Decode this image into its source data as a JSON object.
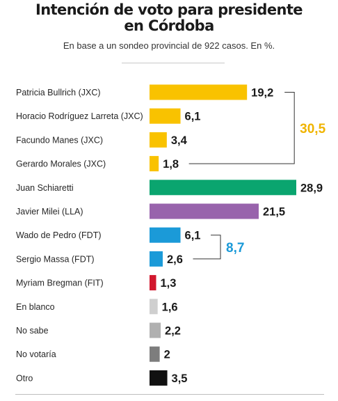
{
  "title_line1": "Intención de voto para presidente",
  "title_line2": "en Córdoba",
  "subtitle": "En base a un sondeo provincial de 922 casos. En %.",
  "chart_data": {
    "type": "bar",
    "orientation": "horizontal",
    "title": "Intención de voto para presidente en Córdoba",
    "subtitle": "En base a un sondeo provincial de 922 casos. En %.",
    "xlabel": "",
    "ylabel": "",
    "grid": false,
    "categories": [
      "Patricia Bullrich (JXC)",
      "Horacio Rodríguez Larreta (JXC)",
      "Facundo Manes (JXC)",
      "Gerardo Morales (JXC)",
      "Juan Schiaretti",
      "Javier Milei (LLA)",
      "Wado de Pedro (FDT)",
      "Sergio Massa (FDT)",
      "Myriam Bregman (FIT)",
      "En blanco",
      "No sabe",
      "No votaría",
      "Otro"
    ],
    "values": [
      19.2,
      6.1,
      3.4,
      1.8,
      28.9,
      21.5,
      6.1,
      2.6,
      1.3,
      1.6,
      2.2,
      2,
      3.5
    ],
    "value_labels": [
      "19,2",
      "6,1",
      "3,4",
      "1,8",
      "28,9",
      "21,5",
      "6,1",
      "2,6",
      "1,3",
      "1,6",
      "2,2",
      "2",
      "3,5"
    ],
    "colors": [
      "#f9c200",
      "#f9c200",
      "#f9c200",
      "#f9c200",
      "#0aa56f",
      "#9863ac",
      "#1b9ad8",
      "#1b9ad8",
      "#d2172e",
      "#cfcfcf",
      "#b0b0b0",
      "#7d7d7d",
      "#111111"
    ],
    "xlim": [
      0,
      28.9
    ],
    "annotations": [
      {
        "label": "30,5",
        "from": 0,
        "to": 3,
        "color": "#f0b400"
      },
      {
        "label": "8,7",
        "from": 6,
        "to": 7,
        "color": "#1b9ad8"
      }
    ]
  }
}
